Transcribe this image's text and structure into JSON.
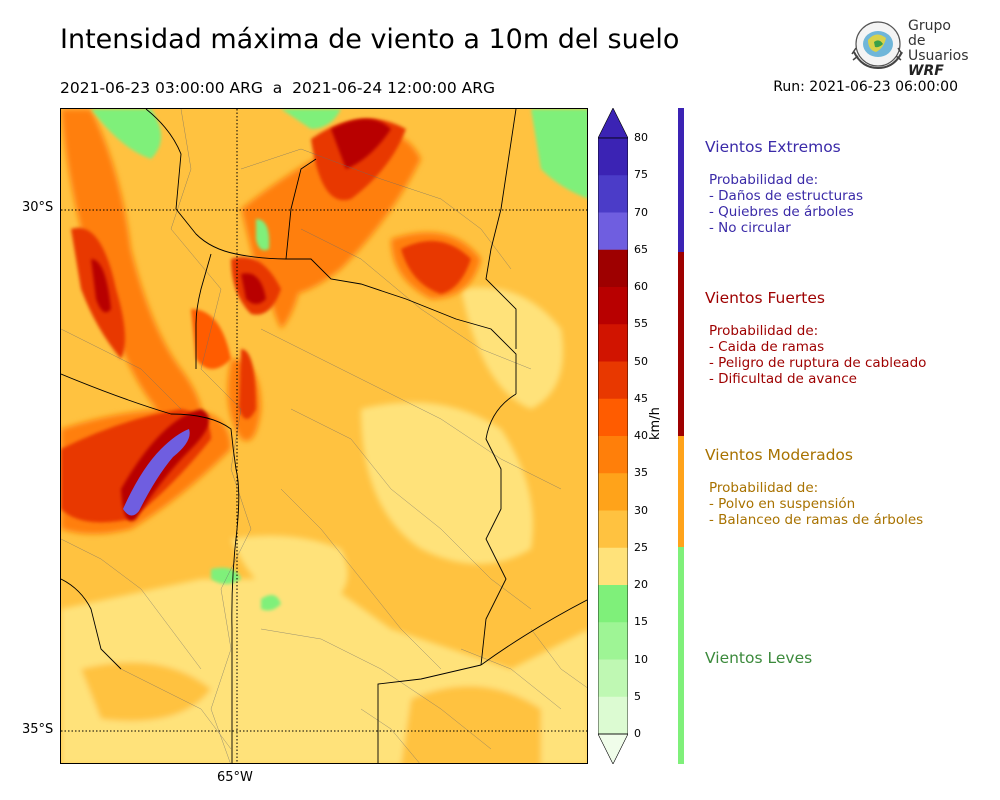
{
  "header": {
    "title": "Intensidad máxima de viento a 10m del suelo",
    "period": "2021-06-23 03:00:00 ARG  a  2021-06-24 12:00:00 ARG",
    "run": "Run: 2021-06-23 06:00:00"
  },
  "logo": {
    "line1": "Grupo de",
    "line2": "Usuarios",
    "line3": "WRF"
  },
  "map": {
    "lat_labels": [
      "30°S",
      "35°S"
    ],
    "lon_labels": [
      "65°W"
    ]
  },
  "colorbar": {
    "unit": "km/h",
    "ticks": [
      "80",
      "75",
      "70",
      "65",
      "60",
      "55",
      "50",
      "45",
      "40",
      "35",
      "30",
      "25",
      "20",
      "15",
      "10",
      "5",
      "0"
    ],
    "colors": [
      "#3b23b4",
      "#4b3cc8",
      "#6f5ee0",
      "#9e0000",
      "#b80000",
      "#d11400",
      "#e83800",
      "#ff5c00",
      "#ff7f0a",
      "#ffa31a",
      "#ffc240",
      "#ffe27a",
      "#7ff07a",
      "#9ef595",
      "#bff8b3",
      "#dcfbd2",
      "#f0fdea"
    ],
    "band_colors": {
      "extremos": "#3b23b4",
      "fuertes": "#9e0000",
      "moderados": "#ffa31a",
      "leves": "#7ff07a"
    }
  },
  "legend": {
    "extremos": {
      "title": "Vientos Extremos",
      "color": "#3a2aa8",
      "lines": [
        "Probabilidad de:",
        "- Daños de estructuras",
        "- Quiebres de árboles",
        "- No circular"
      ]
    },
    "fuertes": {
      "title": "Vientos Fuertes",
      "color": "#9e0000",
      "lines": [
        "Probabilidad de:",
        "- Caida de ramas",
        "- Peligro de ruptura de cableado",
        "- Dificultad de avance"
      ]
    },
    "moderados": {
      "title": "Vientos Moderados",
      "color": "#a87200",
      "lines": [
        "Probabilidad de:",
        "- Polvo en suspensión",
        "- Balanceo de ramas de árboles"
      ]
    },
    "leves": {
      "title": "Vientos Leves",
      "color": "#3c8a3c"
    }
  }
}
